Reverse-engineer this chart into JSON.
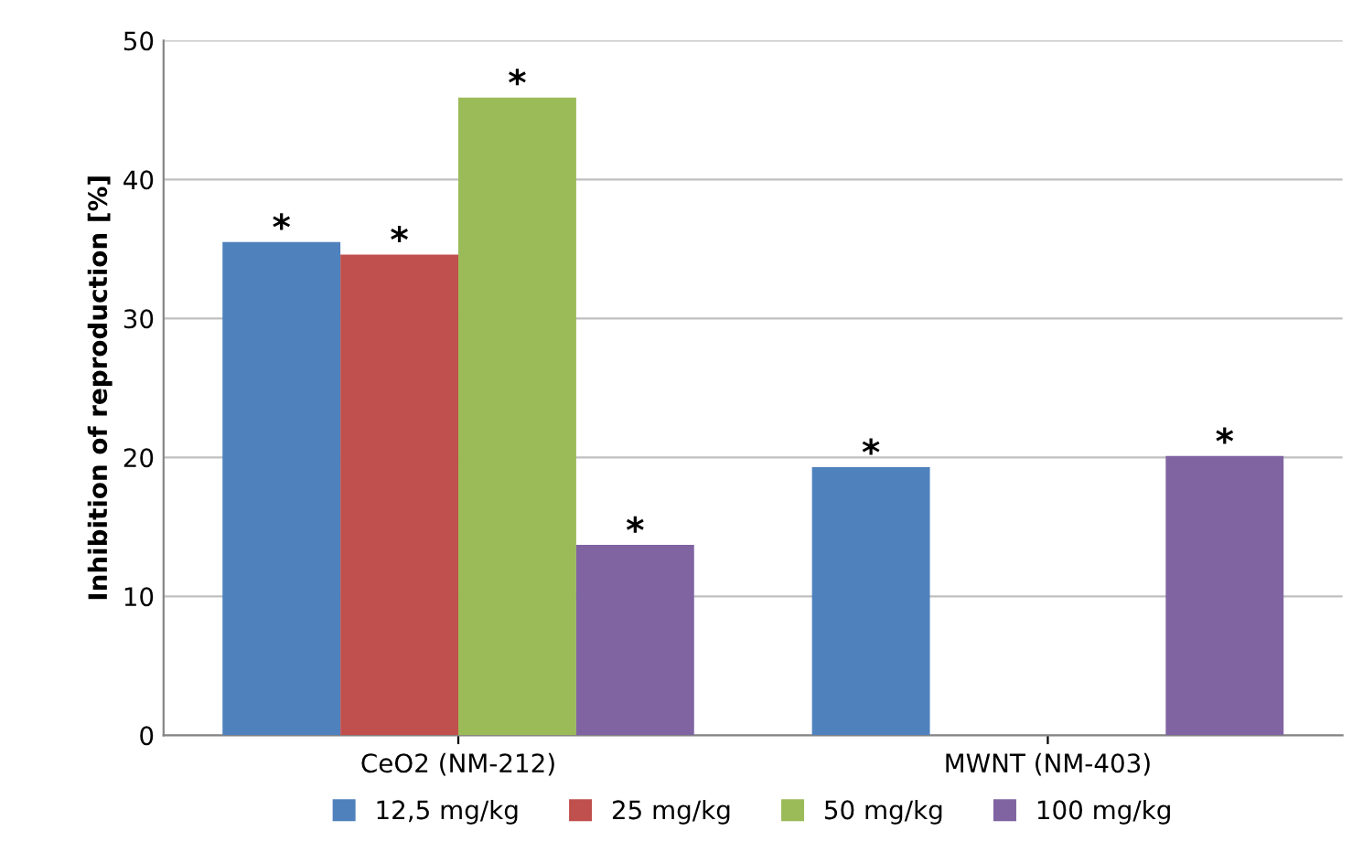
{
  "chart_data": {
    "type": "bar",
    "ylabel": "Inhibition of reproduction [%]",
    "categories": [
      "CeO2 (NM-212)",
      "MWNT (NM-403)"
    ],
    "series": [
      {
        "name": "12,5 mg/kg",
        "color": "#4f81bd",
        "values": [
          35.5,
          19.3
        ],
        "value_labels": [
          "*",
          "*"
        ]
      },
      {
        "name": "25 mg/kg",
        "color": "#c0504d",
        "values": [
          34.6,
          null
        ],
        "value_labels": [
          "*",
          null
        ]
      },
      {
        "name": "50 mg/kg",
        "color": "#9bbb59",
        "values": [
          45.9,
          null
        ],
        "value_labels": [
          "*",
          null
        ]
      },
      {
        "name": "100 mg/kg",
        "color": "#8064a2",
        "values": [
          13.7,
          20.1
        ],
        "value_labels": [
          "*",
          "*"
        ]
      }
    ],
    "ylim": [
      0,
      50
    ],
    "yticks": [
      0,
      10,
      20,
      30,
      40,
      50
    ],
    "grid": "y",
    "legend": "bottom"
  }
}
